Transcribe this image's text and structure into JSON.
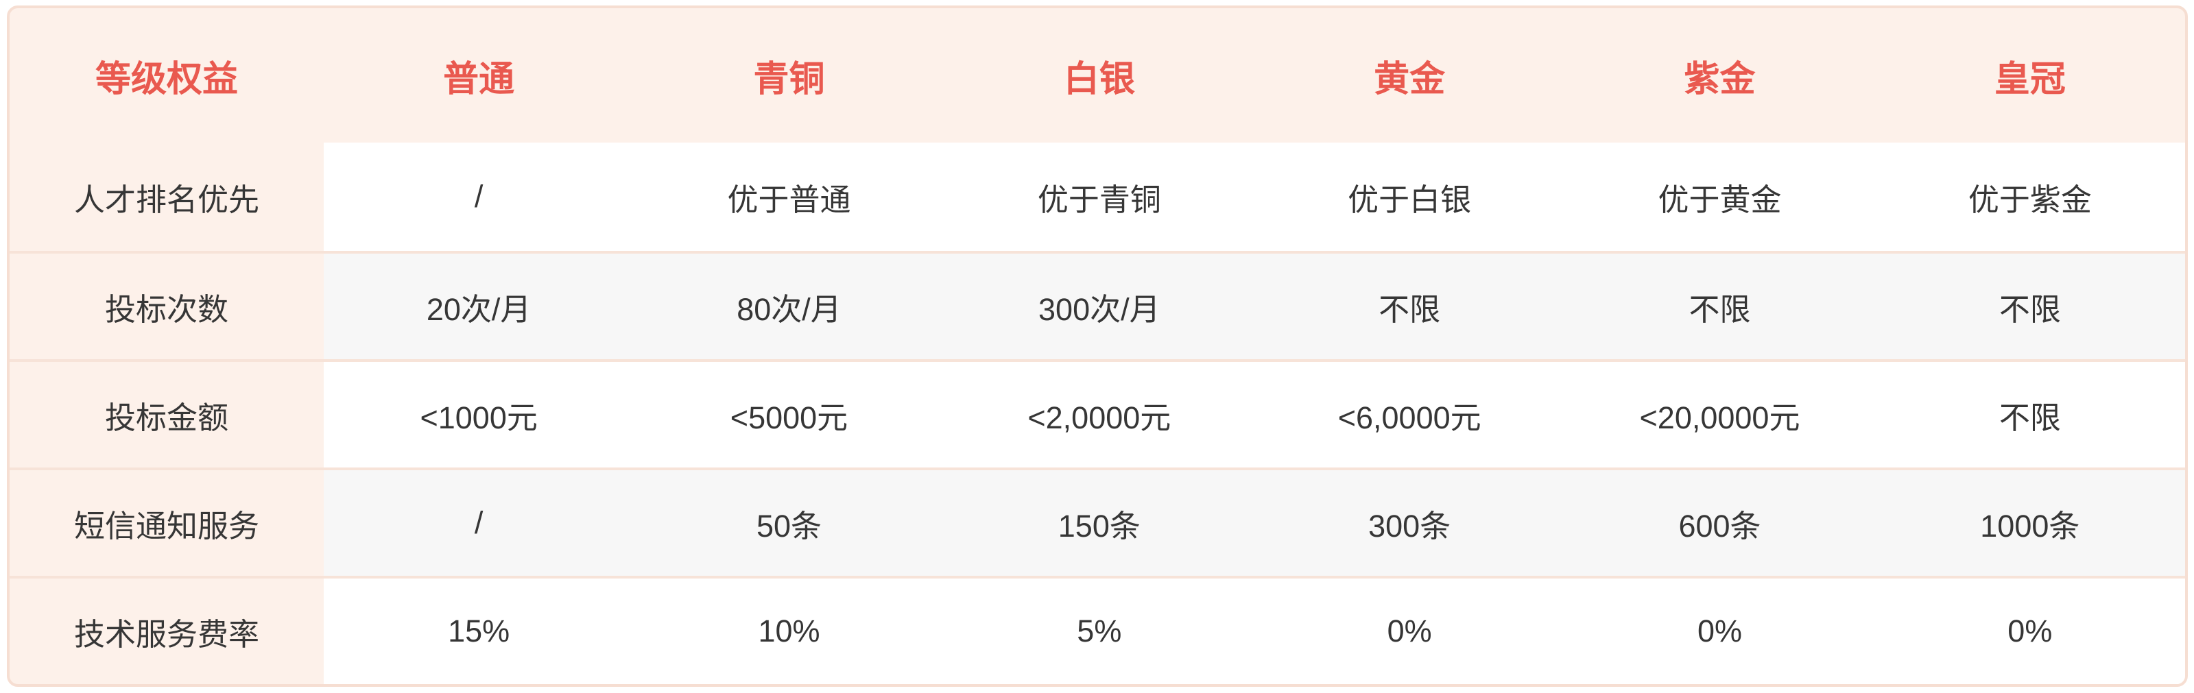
{
  "theme": {
    "page_background": "#ffffff",
    "card_background": "#fdf1ea",
    "card_border_color": "#f6ded2",
    "divider_color": "#f7e3d8",
    "stripe_color": "#f7f7f7",
    "header_text_color": "#e9594f",
    "body_text_color": "#363636"
  },
  "table": {
    "header": {
      "first_label": "等级权益",
      "tiers": [
        "普通",
        "青铜",
        "白银",
        "黄金",
        "紫金",
        "皇冠"
      ]
    },
    "rows": [
      {
        "label": "人才排名优先",
        "values": [
          "/",
          "优于普通",
          "优于青铜",
          "优于白银",
          "优于黄金",
          "优于紫金"
        ]
      },
      {
        "label": "投标次数",
        "values": [
          "20次/月",
          "80次/月",
          "300次/月",
          "不限",
          "不限",
          "不限"
        ]
      },
      {
        "label": "投标金额",
        "values": [
          "<1000元",
          "<5000元",
          "<2,0000元",
          "<6,0000元",
          "<20,0000元",
          "不限"
        ]
      },
      {
        "label": "短信通知服务",
        "values": [
          "/",
          "50条",
          "150条",
          "300条",
          "600条",
          "1000条"
        ]
      },
      {
        "label": "技术服务费率",
        "values": [
          "15%",
          "10%",
          "5%",
          "0%",
          "0%",
          "0%"
        ]
      }
    ]
  }
}
